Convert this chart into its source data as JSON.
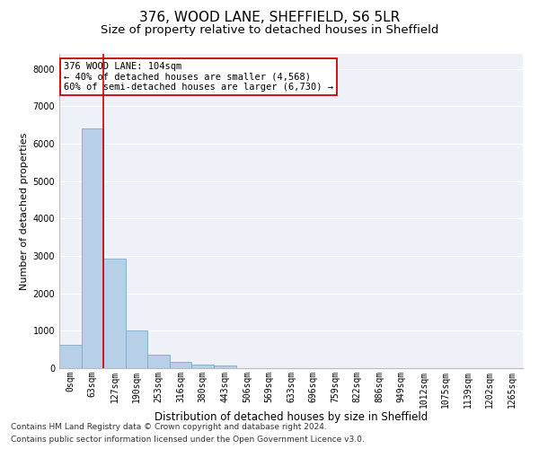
{
  "title1": "376, WOOD LANE, SHEFFIELD, S6 5LR",
  "title2": "Size of property relative to detached houses in Sheffield",
  "xlabel": "Distribution of detached houses by size in Sheffield",
  "ylabel": "Number of detached properties",
  "bar_color": "#b8cfe8",
  "bar_edge_color": "#7aaacf",
  "vline_color": "#cc0000",
  "vline_x": 1.5,
  "annotation_line1": "376 WOOD LANE: 104sqm",
  "annotation_line2": "← 40% of detached houses are smaller (4,568)",
  "annotation_line3": "60% of semi-detached houses are larger (6,730) →",
  "annotation_box_color": "#ffffff",
  "annotation_box_edge_color": "#cc0000",
  "categories": [
    "0sqm",
    "63sqm",
    "127sqm",
    "190sqm",
    "253sqm",
    "316sqm",
    "380sqm",
    "443sqm",
    "506sqm",
    "569sqm",
    "633sqm",
    "696sqm",
    "759sqm",
    "822sqm",
    "886sqm",
    "949sqm",
    "1012sqm",
    "1075sqm",
    "1139sqm",
    "1202sqm",
    "1265sqm"
  ],
  "values": [
    620,
    6400,
    2920,
    1000,
    370,
    170,
    100,
    80,
    0,
    0,
    0,
    0,
    0,
    0,
    0,
    0,
    0,
    0,
    0,
    0,
    0
  ],
  "ylim": [
    0,
    8400
  ],
  "yticks": [
    0,
    1000,
    2000,
    3000,
    4000,
    5000,
    6000,
    7000,
    8000
  ],
  "background_color": "#eef2f8",
  "grid_color": "#ffffff",
  "footer1": "Contains HM Land Registry data © Crown copyright and database right 2024.",
  "footer2": "Contains public sector information licensed under the Open Government Licence v3.0.",
  "title1_fontsize": 11,
  "title2_fontsize": 9.5,
  "xlabel_fontsize": 8.5,
  "ylabel_fontsize": 8,
  "tick_fontsize": 7,
  "footer_fontsize": 6.5,
  "annot_fontsize": 7.5
}
